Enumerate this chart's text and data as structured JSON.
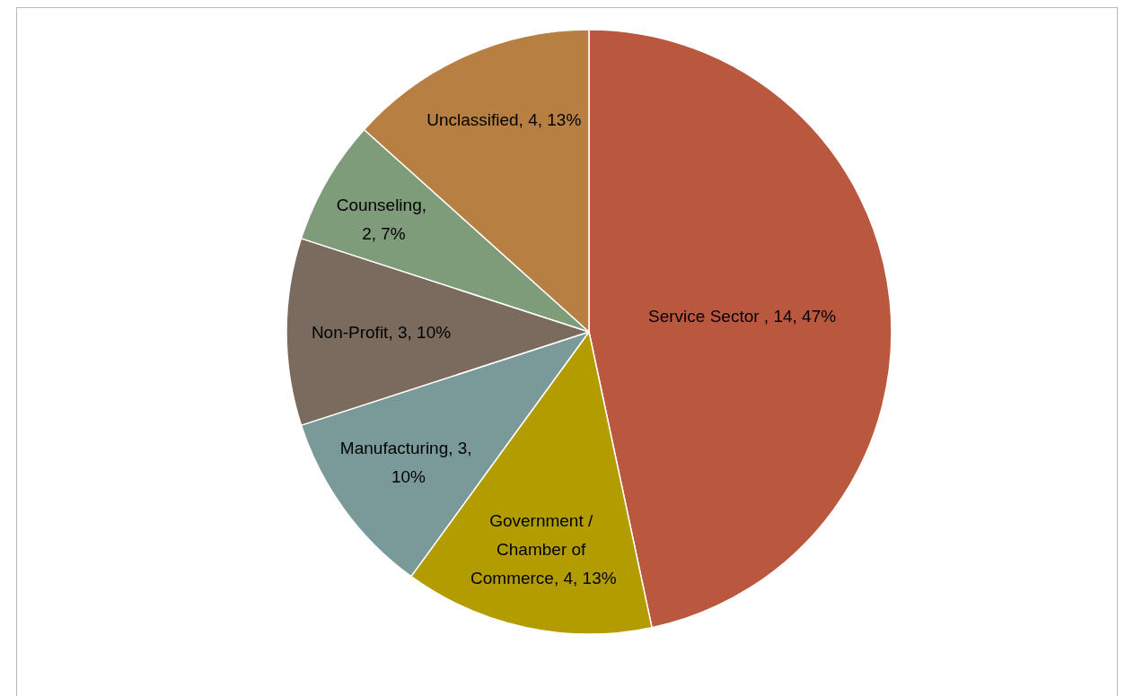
{
  "chart_data": {
    "type": "pie",
    "categories": [
      "Service Sector ",
      "Government / Chamber of Commerce",
      "Manufacturing",
      "Non-Profit",
      "Counseling",
      "Unclassified"
    ],
    "values": [
      14,
      4,
      3,
      3,
      2,
      4
    ],
    "value_labels": [
      ", 14, 47%",
      ", 4, 13%",
      ", 3, 10%",
      ", 3, 10%",
      ", 2, 7%",
      ", 4, 13%"
    ],
    "colors": [
      "#b9573f",
      "#b39c00",
      "#7a9a9a",
      "#7a6b5e",
      "#7f9c7a",
      "#b87f42"
    ],
    "legend": false
  }
}
